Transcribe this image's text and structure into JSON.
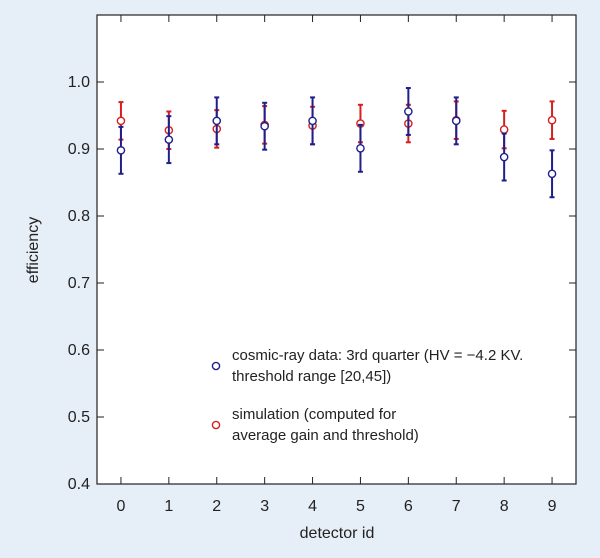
{
  "colors": {
    "background": "#e6eef7",
    "plot_background": "#ffffff",
    "axis": "#222222",
    "data_series": "#1f1f8c",
    "simulation_series": "#d42020"
  },
  "chart_data": {
    "type": "scatter",
    "title": "",
    "xlabel": "detector id",
    "ylabel": "efficiency",
    "xlim": [
      -0.5,
      9.5
    ],
    "ylim": [
      0.4,
      1.1
    ],
    "xticks": [
      "0",
      "1",
      "2",
      "3",
      "4",
      "5",
      "6",
      "7",
      "8",
      "9"
    ],
    "yticks": [
      "0.4",
      "0.5",
      "0.6",
      "0.7",
      "0.8",
      "0.9",
      "1.0"
    ],
    "grid": false,
    "legend_position": "lower-center",
    "series": [
      {
        "name": "cosmic-ray data: 3rd quarter (HV = −4.2 KV. threshold range [20,45])",
        "legend_lines": [
          "cosmic-ray data: 3rd quarter (HV = −4.2 KV.",
          "threshold range [20,45])"
        ],
        "color": "#1f1f8c",
        "x": [
          0,
          1,
          2,
          3,
          4,
          5,
          6,
          7,
          8,
          9
        ],
        "y": [
          0.898,
          0.914,
          0.942,
          0.934,
          0.942,
          0.901,
          0.956,
          0.942,
          0.888,
          0.863
        ],
        "yerr": [
          0.035,
          0.035,
          0.035,
          0.035,
          0.035,
          0.035,
          0.035,
          0.035,
          0.035,
          0.035
        ]
      },
      {
        "name": "simulation (computed for average gain and threshold)",
        "legend_lines": [
          "simulation (computed for",
          "average gain and threshold)"
        ],
        "color": "#d42020",
        "x": [
          0,
          1,
          2,
          3,
          4,
          5,
          6,
          7,
          8,
          9
        ],
        "y": [
          0.942,
          0.928,
          0.93,
          0.936,
          0.935,
          0.938,
          0.938,
          0.943,
          0.929,
          0.943
        ],
        "yerr": [
          0.028,
          0.028,
          0.028,
          0.028,
          0.028,
          0.028,
          0.028,
          0.028,
          0.028,
          0.028
        ]
      }
    ]
  }
}
